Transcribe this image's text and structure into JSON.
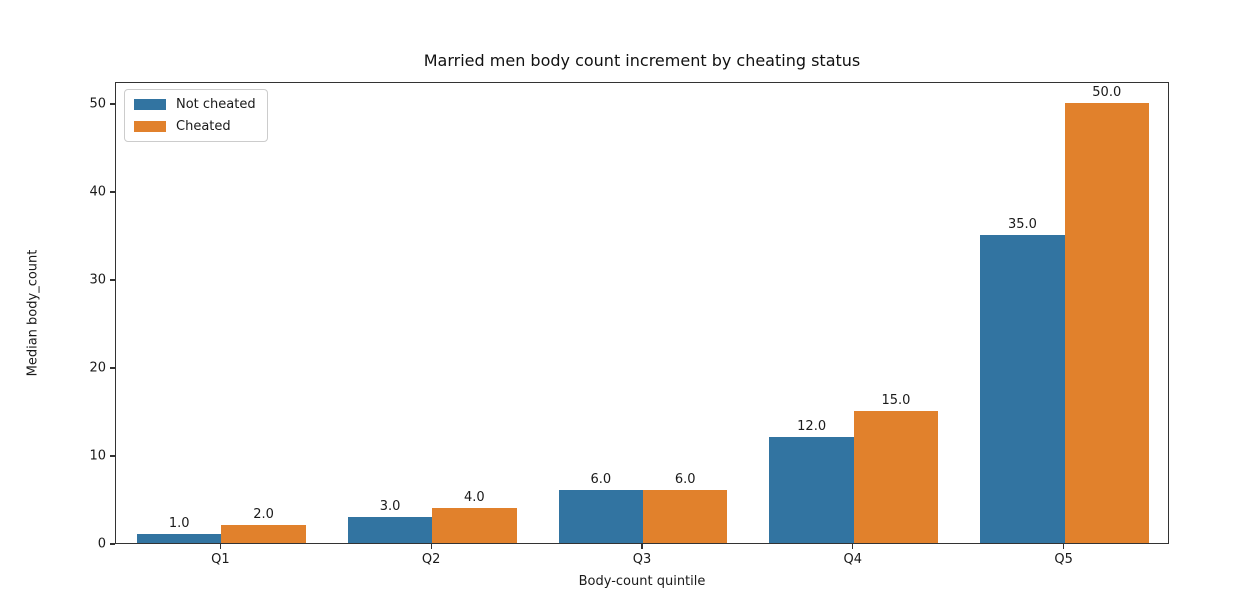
{
  "chart_data": {
    "type": "bar",
    "title": "Married men body count increment by cheating status",
    "xlabel": "Body-count quintile",
    "ylabel": "Median body_count",
    "categories": [
      "Q1",
      "Q2",
      "Q3",
      "Q4",
      "Q5"
    ],
    "series": [
      {
        "name": "Not cheated",
        "color": "#3274a1",
        "values": [
          1.0,
          3.0,
          6.0,
          12.0,
          35.0
        ]
      },
      {
        "name": "Cheated",
        "color": "#e1812c",
        "values": [
          2.0,
          4.0,
          6.0,
          15.0,
          50.0
        ]
      }
    ],
    "bar_labels": {
      "Not cheated": [
        "1.0",
        "3.0",
        "6.0",
        "12.0",
        "35.0"
      ],
      "Cheated": [
        "2.0",
        "4.0",
        "6.0",
        "15.0",
        "50.0"
      ]
    },
    "yticks": [
      0,
      10,
      20,
      30,
      40,
      50
    ],
    "ylim": [
      0,
      52.5
    ],
    "grid": false,
    "legend_position": "upper left",
    "colors": {
      "axis": "#333333",
      "text": "#1a1a1a",
      "background": "#ffffff"
    }
  }
}
